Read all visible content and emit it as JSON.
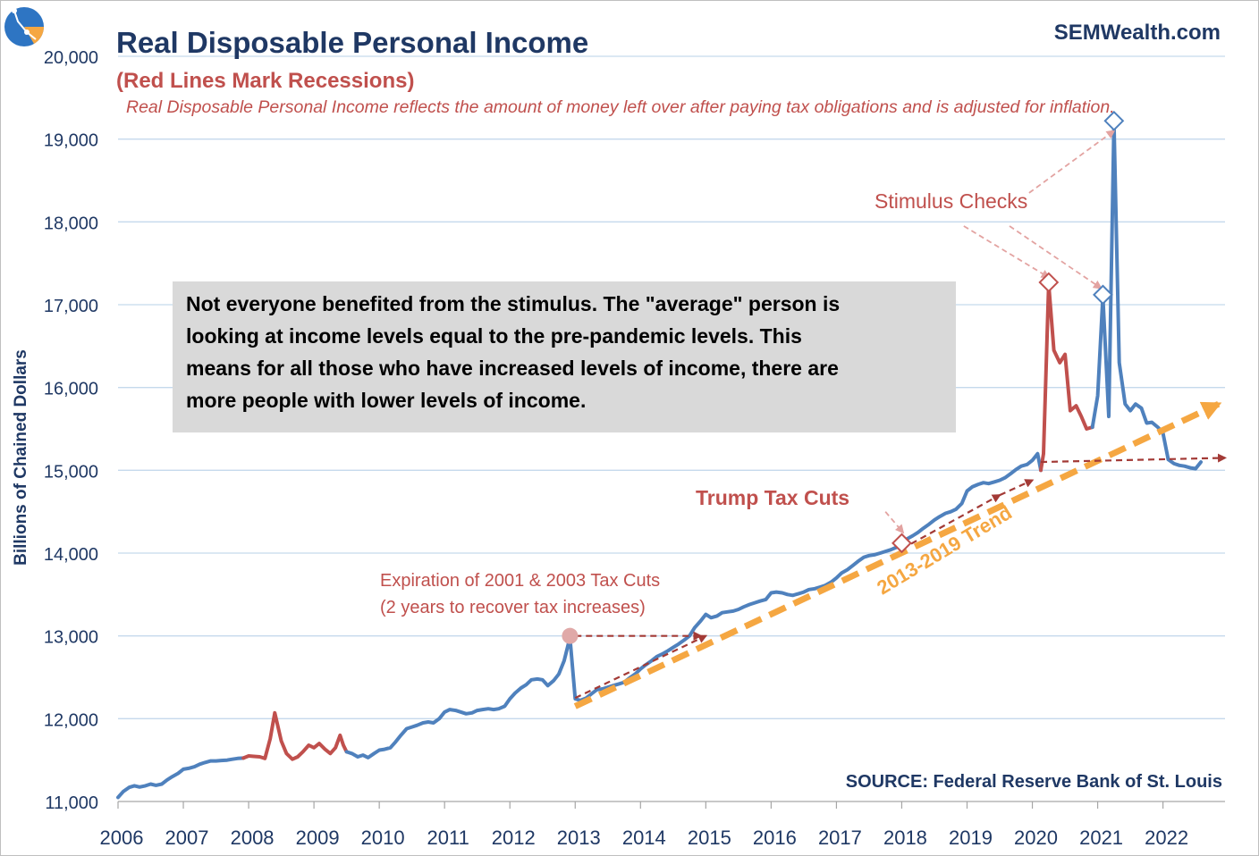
{
  "chart_data": {
    "type": "line",
    "title": "Real Disposable Personal Income",
    "subtitle": "(Red Lines Mark Recessions)",
    "description": "Real Disposable Personal Income reflects the amount of money left over after paying tax obligations and is adjusted for inflation.",
    "brand": "SEMWealth.com",
    "source": "SOURCE:  Federal Reserve Bank of St. Louis",
    "ylabel": "Billions of Chained Dollars",
    "xlabel": "",
    "ylim": [
      11000,
      20000
    ],
    "xlim": [
      2006,
      2022.95
    ],
    "y_ticks": [
      11000,
      12000,
      13000,
      14000,
      15000,
      16000,
      17000,
      18000,
      19000,
      20000
    ],
    "y_tick_labels": [
      "11,000",
      "12,000",
      "13,000",
      "14,000",
      "15,000",
      "16,000",
      "17,000",
      "18,000",
      "19,000",
      "20,000"
    ],
    "x_ticks": [
      2006,
      2007,
      2008,
      2009,
      2010,
      2011,
      2012,
      2013,
      2014,
      2015,
      2016,
      2017,
      2018,
      2019,
      2020,
      2021,
      2022
    ],
    "x_tick_labels": [
      "2006",
      "2007",
      "2008",
      "2009",
      "2010",
      "2011",
      "2012",
      "2013",
      "2014",
      "2015",
      "2016",
      "2017",
      "2018",
      "2019",
      "2020",
      "2021",
      "2022"
    ],
    "grid": "horizontal",
    "colors": {
      "line": "#4f81bd",
      "recession": "#c0504d",
      "trend": "#f5a742",
      "title": "#1f3864",
      "annotation": "#c0504d",
      "box": "#d9d9d9",
      "grid": "#c5d9ec"
    },
    "series": [
      {
        "points": [
          [
            2006.0,
            11050
          ],
          [
            2006.08,
            11120
          ],
          [
            2006.17,
            11170
          ],
          [
            2006.25,
            11190
          ],
          [
            2006.33,
            11175
          ],
          [
            2006.42,
            11190
          ],
          [
            2006.5,
            11210
          ],
          [
            2006.58,
            11195
          ],
          [
            2006.67,
            11210
          ],
          [
            2006.75,
            11260
          ],
          [
            2006.83,
            11300
          ],
          [
            2006.92,
            11340
          ],
          [
            2007.0,
            11390
          ],
          [
            2007.08,
            11400
          ],
          [
            2007.17,
            11420
          ],
          [
            2007.25,
            11450
          ],
          [
            2007.33,
            11470
          ],
          [
            2007.42,
            11490
          ],
          [
            2007.5,
            11490
          ],
          [
            2007.58,
            11495
          ],
          [
            2007.67,
            11500
          ],
          [
            2007.75,
            11510
          ],
          [
            2007.83,
            11520
          ],
          [
            2007.92,
            11525
          ]
        ]
      },
      {
        "points": [
          [
            2007.92,
            11525
          ],
          [
            2008.0,
            11550
          ],
          [
            2008.08,
            11545
          ],
          [
            2008.17,
            11540
          ],
          [
            2008.25,
            11520
          ],
          [
            2008.33,
            11760
          ],
          [
            2008.4,
            12070
          ],
          [
            2008.5,
            11730
          ],
          [
            2008.58,
            11580
          ],
          [
            2008.67,
            11510
          ],
          [
            2008.75,
            11540
          ],
          [
            2008.83,
            11600
          ],
          [
            2008.92,
            11680
          ],
          [
            2009.0,
            11650
          ],
          [
            2009.08,
            11700
          ],
          [
            2009.17,
            11630
          ],
          [
            2009.25,
            11580
          ],
          [
            2009.33,
            11650
          ],
          [
            2009.4,
            11800
          ],
          [
            2009.45,
            11680
          ],
          [
            2009.5,
            11600
          ]
        ]
      },
      {
        "points": [
          [
            2009.5,
            11600
          ],
          [
            2009.58,
            11580
          ],
          [
            2009.67,
            11540
          ],
          [
            2009.75,
            11560
          ],
          [
            2009.83,
            11530
          ],
          [
            2009.92,
            11580
          ],
          [
            2010.0,
            11620
          ],
          [
            2010.08,
            11630
          ],
          [
            2010.17,
            11650
          ],
          [
            2010.25,
            11720
          ],
          [
            2010.33,
            11800
          ],
          [
            2010.42,
            11880
          ],
          [
            2010.5,
            11900
          ],
          [
            2010.58,
            11920
          ],
          [
            2010.67,
            11950
          ],
          [
            2010.75,
            11960
          ],
          [
            2010.83,
            11950
          ],
          [
            2010.92,
            12000
          ],
          [
            2011.0,
            12080
          ],
          [
            2011.08,
            12110
          ],
          [
            2011.17,
            12100
          ],
          [
            2011.25,
            12080
          ],
          [
            2011.33,
            12060
          ],
          [
            2011.42,
            12070
          ],
          [
            2011.5,
            12100
          ],
          [
            2011.58,
            12110
          ],
          [
            2011.67,
            12120
          ],
          [
            2011.75,
            12110
          ],
          [
            2011.83,
            12120
          ],
          [
            2011.92,
            12150
          ],
          [
            2012.0,
            12240
          ],
          [
            2012.08,
            12310
          ],
          [
            2012.17,
            12370
          ],
          [
            2012.25,
            12410
          ],
          [
            2012.33,
            12470
          ],
          [
            2012.42,
            12480
          ],
          [
            2012.5,
            12470
          ],
          [
            2012.58,
            12400
          ],
          [
            2012.67,
            12460
          ],
          [
            2012.75,
            12540
          ],
          [
            2012.83,
            12700
          ],
          [
            2012.92,
            12980
          ],
          [
            2013.0,
            12240
          ],
          [
            2013.08,
            12220
          ],
          [
            2013.17,
            12250
          ],
          [
            2013.25,
            12300
          ],
          [
            2013.33,
            12350
          ],
          [
            2013.42,
            12360
          ],
          [
            2013.5,
            12380
          ],
          [
            2013.58,
            12400
          ],
          [
            2013.67,
            12420
          ],
          [
            2013.75,
            12440
          ],
          [
            2013.83,
            12490
          ],
          [
            2013.92,
            12540
          ],
          [
            2014.0,
            12600
          ],
          [
            2014.08,
            12650
          ],
          [
            2014.17,
            12700
          ],
          [
            2014.25,
            12750
          ],
          [
            2014.33,
            12780
          ],
          [
            2014.42,
            12820
          ],
          [
            2014.5,
            12860
          ],
          [
            2014.58,
            12900
          ],
          [
            2014.67,
            12950
          ],
          [
            2014.75,
            13000
          ],
          [
            2014.83,
            13100
          ],
          [
            2014.92,
            13180
          ],
          [
            2015.0,
            13260
          ],
          [
            2015.08,
            13220
          ],
          [
            2015.17,
            13240
          ],
          [
            2015.25,
            13280
          ],
          [
            2015.33,
            13290
          ],
          [
            2015.42,
            13300
          ],
          [
            2015.5,
            13320
          ],
          [
            2015.58,
            13350
          ],
          [
            2015.67,
            13380
          ],
          [
            2015.75,
            13400
          ],
          [
            2015.83,
            13420
          ],
          [
            2015.92,
            13440
          ],
          [
            2016.0,
            13520
          ],
          [
            2016.08,
            13530
          ],
          [
            2016.17,
            13520
          ],
          [
            2016.25,
            13500
          ],
          [
            2016.33,
            13490
          ],
          [
            2016.42,
            13510
          ],
          [
            2016.5,
            13530
          ],
          [
            2016.58,
            13560
          ],
          [
            2016.67,
            13570
          ],
          [
            2016.75,
            13590
          ],
          [
            2016.83,
            13610
          ],
          [
            2016.92,
            13650
          ],
          [
            2017.0,
            13700
          ],
          [
            2017.08,
            13760
          ],
          [
            2017.17,
            13800
          ],
          [
            2017.25,
            13850
          ],
          [
            2017.33,
            13900
          ],
          [
            2017.42,
            13950
          ],
          [
            2017.5,
            13970
          ],
          [
            2017.58,
            13980
          ],
          [
            2017.67,
            14000
          ],
          [
            2017.75,
            14020
          ],
          [
            2017.83,
            14040
          ],
          [
            2017.92,
            14070
          ],
          [
            2018.0,
            14130
          ],
          [
            2018.08,
            14170
          ],
          [
            2018.17,
            14210
          ],
          [
            2018.25,
            14250
          ],
          [
            2018.33,
            14300
          ],
          [
            2018.42,
            14350
          ],
          [
            2018.5,
            14400
          ],
          [
            2018.58,
            14440
          ],
          [
            2018.67,
            14480
          ],
          [
            2018.75,
            14500
          ],
          [
            2018.83,
            14530
          ],
          [
            2018.92,
            14600
          ],
          [
            2019.0,
            14750
          ],
          [
            2019.08,
            14800
          ],
          [
            2019.17,
            14830
          ],
          [
            2019.25,
            14850
          ],
          [
            2019.33,
            14840
          ],
          [
            2019.42,
            14860
          ],
          [
            2019.5,
            14880
          ],
          [
            2019.58,
            14910
          ],
          [
            2019.67,
            14960
          ],
          [
            2019.75,
            15010
          ],
          [
            2019.83,
            15050
          ],
          [
            2019.92,
            15070
          ],
          [
            2020.0,
            15120
          ],
          [
            2020.08,
            15200
          ],
          [
            2020.13,
            15000
          ]
        ]
      },
      {
        "points": [
          [
            2020.13,
            15000
          ],
          [
            2020.17,
            15200
          ],
          [
            2020.25,
            17250
          ],
          [
            2020.33,
            16450
          ],
          [
            2020.42,
            16300
          ],
          [
            2020.5,
            16400
          ],
          [
            2020.58,
            15720
          ],
          [
            2020.67,
            15780
          ],
          [
            2020.75,
            15650
          ],
          [
            2020.83,
            15500
          ],
          [
            2020.92,
            15520
          ]
        ]
      },
      {
        "points": [
          [
            2020.92,
            15520
          ],
          [
            2021.0,
            15900
          ],
          [
            2021.08,
            17100
          ],
          [
            2021.17,
            15650
          ],
          [
            2021.25,
            19200
          ],
          [
            2021.33,
            16300
          ],
          [
            2021.42,
            15800
          ],
          [
            2021.5,
            15720
          ],
          [
            2021.58,
            15800
          ],
          [
            2021.67,
            15750
          ],
          [
            2021.75,
            15570
          ],
          [
            2021.83,
            15580
          ],
          [
            2021.92,
            15520
          ],
          [
            2022.0,
            15450
          ],
          [
            2022.08,
            15130
          ],
          [
            2022.17,
            15080
          ],
          [
            2022.25,
            15060
          ],
          [
            2022.33,
            15050
          ],
          [
            2022.42,
            15030
          ],
          [
            2022.5,
            15020
          ],
          [
            2022.58,
            15100
          ]
        ]
      }
    ],
    "recession_series_indices": [
      1,
      3
    ],
    "trend": {
      "label": "2013-2019 Trend",
      "from": [
        2013.0,
        12150
      ],
      "to": [
        2022.85,
        15800
      ]
    },
    "recovery_arrows": [
      {
        "from": [
          2013.0,
          13000
        ],
        "to": [
          2014.92,
          13000
        ]
      },
      {
        "from": [
          2013.0,
          12250
        ],
        "to": [
          2015.0,
          13000
        ]
      },
      {
        "from": [
          2018.0,
          14050
        ],
        "to": [
          2019.5,
          14700
        ]
      },
      {
        "from": [
          2019.5,
          14700
        ],
        "to": [
          2020.0,
          14880
        ]
      },
      {
        "from": [
          2020.13,
          15100
        ],
        "to": [
          2022.95,
          15150
        ]
      }
    ],
    "annotations": {
      "stimulus_checks": "Stimulus Checks",
      "trump_tax_cuts": "Trump Tax Cuts",
      "expiration_line1": "Expiration of 2001 & 2003 Tax Cuts",
      "expiration_line2": "(2 years to recover tax increases)",
      "note_lines": [
        "Not everyone benefited from the stimulus. The \"average\" person is",
        "looking at income levels equal to the pre-pandemic levels. This",
        "means for all those who have increased levels of income, there are",
        "more people with lower levels of income."
      ]
    },
    "markers": [
      {
        "kind": "circle",
        "x": 2012.92,
        "y": 13000
      },
      {
        "kind": "diamond",
        "x": 2018.0,
        "y": 14120
      },
      {
        "kind": "diamond",
        "x": 2020.25,
        "y": 17270
      },
      {
        "kind": "diamond",
        "x": 2021.08,
        "y": 17120
      },
      {
        "kind": "diamond",
        "x": 2021.25,
        "y": 19220
      }
    ]
  }
}
